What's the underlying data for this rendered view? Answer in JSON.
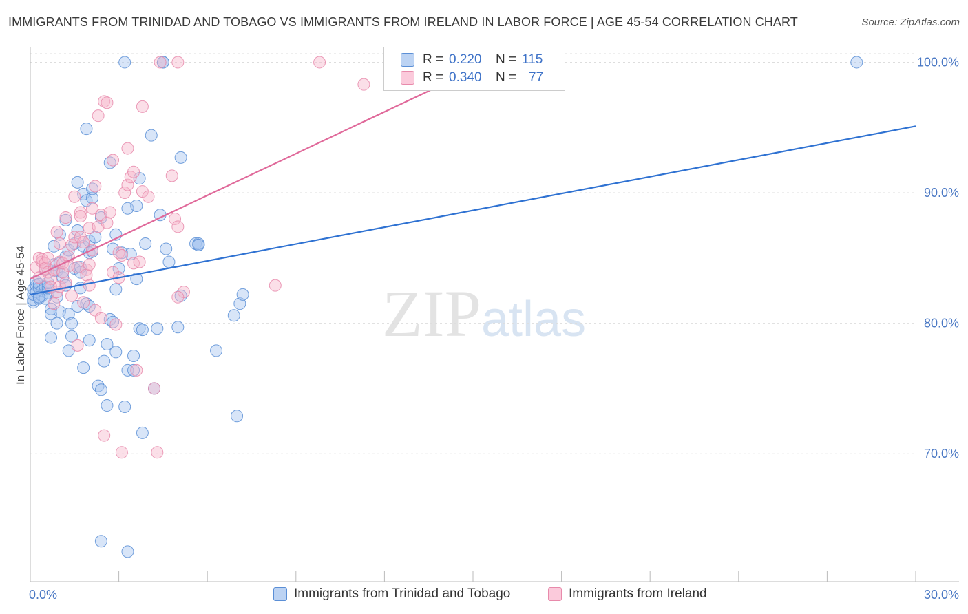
{
  "title": "IMMIGRANTS FROM TRINIDAD AND TOBAGO VS IMMIGRANTS FROM IRELAND IN LABOR FORCE | AGE 45-54 CORRELATION CHART",
  "source": "Source: ZipAtlas.com",
  "watermark": {
    "zip": "ZIP",
    "atlas": "atlas"
  },
  "legend": {
    "series1": {
      "r_label": "R =",
      "r_value": "0.220",
      "n_label": "N =",
      "n_value": "115"
    },
    "series2": {
      "r_label": "R =",
      "r_value": "0.340",
      "n_label": "N =",
      "n_value": "77"
    }
  },
  "colors": {
    "blue_fill": "#a9c6ef",
    "blue_stroke": "#5b8fd6",
    "blue_line": "#2f72d2",
    "pink_fill": "#f6b9cd",
    "pink_stroke": "#e88aab",
    "pink_line": "#e0699a",
    "grid": "#dddddd",
    "tick_text": "#4a78c4"
  },
  "chart_data": {
    "type": "scatter",
    "title": "IMMIGRANTS FROM TRINIDAD AND TOBAGO VS IMMIGRANTS FROM IRELAND IN LABOR FORCE | AGE 45-54 CORRELATION CHART",
    "xlabel": "",
    "ylabel": "In Labor Force | Age 45-54",
    "xlim": [
      0,
      30
    ],
    "ylim": [
      60.2,
      101.5
    ],
    "x_ticks": [
      0,
      3,
      6,
      9,
      12,
      15,
      18,
      21,
      24,
      27,
      30
    ],
    "x_tick_labels": {
      "0": "0.0%",
      "30": "30.0%"
    },
    "y_ticks": [
      70,
      80,
      90,
      100
    ],
    "y_tick_labels": [
      "70.0%",
      "80.0%",
      "90.0%",
      "100.0%"
    ],
    "grid": true,
    "legend_position": "top-center",
    "series": [
      {
        "name": "Immigrants from Trinidad and Tobago",
        "color": "#5b8fd6",
        "trend": {
          "x": [
            0,
            30
          ],
          "y": [
            82.2,
            95.1
          ]
        },
        "points": [
          [
            0.1,
            81.6
          ],
          [
            0.1,
            81.8
          ],
          [
            0.1,
            82.2
          ],
          [
            0.1,
            82.6
          ],
          [
            0.2,
            82.4
          ],
          [
            0.2,
            82.9
          ],
          [
            0.2,
            83.2
          ],
          [
            0.3,
            81.9
          ],
          [
            0.3,
            82.7
          ],
          [
            0.3,
            83.0
          ],
          [
            0.4,
            82.1
          ],
          [
            0.4,
            82.5
          ],
          [
            0.5,
            81.9
          ],
          [
            0.5,
            82.8
          ],
          [
            0.5,
            84.1
          ],
          [
            0.6,
            82.3
          ],
          [
            0.6,
            82.7
          ],
          [
            0.7,
            81.1
          ],
          [
            0.7,
            78.9
          ],
          [
            0.7,
            80.7
          ],
          [
            0.8,
            84.0
          ],
          [
            0.8,
            84.5
          ],
          [
            0.8,
            85.9
          ],
          [
            0.9,
            80.0
          ],
          [
            0.9,
            82.0
          ],
          [
            0.9,
            84.0
          ],
          [
            1.0,
            84.6
          ],
          [
            1.0,
            86.8
          ],
          [
            1.0,
            80.9
          ],
          [
            1.1,
            83.5
          ],
          [
            1.1,
            83.9
          ],
          [
            1.2,
            85.1
          ],
          [
            1.2,
            87.9
          ],
          [
            1.2,
            82.9
          ],
          [
            1.3,
            80.7
          ],
          [
            1.3,
            85.6
          ],
          [
            1.3,
            77.9
          ],
          [
            1.4,
            79.0
          ],
          [
            1.4,
            80.0
          ],
          [
            1.5,
            84.2
          ],
          [
            1.5,
            86.1
          ],
          [
            1.6,
            81.3
          ],
          [
            1.6,
            90.8
          ],
          [
            1.6,
            87.1
          ],
          [
            1.7,
            82.7
          ],
          [
            1.7,
            83.9
          ],
          [
            1.7,
            84.3
          ],
          [
            1.8,
            89.9
          ],
          [
            1.8,
            85.9
          ],
          [
            1.8,
            76.6
          ],
          [
            1.9,
            94.9
          ],
          [
            1.9,
            81.5
          ],
          [
            1.9,
            89.4
          ],
          [
            2.0,
            86.3
          ],
          [
            2.0,
            81.3
          ],
          [
            2.0,
            78.7
          ],
          [
            2.0,
            85.4
          ],
          [
            2.1,
            89.6
          ],
          [
            2.1,
            90.3
          ],
          [
            2.1,
            85.5
          ],
          [
            2.2,
            86.6
          ],
          [
            2.3,
            75.2
          ],
          [
            2.4,
            74.9
          ],
          [
            2.4,
            88.1
          ],
          [
            2.5,
            77.1
          ],
          [
            2.6,
            78.4
          ],
          [
            2.6,
            73.7
          ],
          [
            2.7,
            80.3
          ],
          [
            2.7,
            92.3
          ],
          [
            2.8,
            80.1
          ],
          [
            2.8,
            85.7
          ],
          [
            2.9,
            86.8
          ],
          [
            2.9,
            77.8
          ],
          [
            2.9,
            82.6
          ],
          [
            3.0,
            84.2
          ],
          [
            3.1,
            85.4
          ],
          [
            3.2,
            73.6
          ],
          [
            3.2,
            100.0
          ],
          [
            3.3,
            88.8
          ],
          [
            3.3,
            76.4
          ],
          [
            3.4,
            85.3
          ],
          [
            3.5,
            76.4
          ],
          [
            3.5,
            77.5
          ],
          [
            3.6,
            83.4
          ],
          [
            3.6,
            89.0
          ],
          [
            3.7,
            79.6
          ],
          [
            3.7,
            91.1
          ],
          [
            3.8,
            71.6
          ],
          [
            3.8,
            79.5
          ],
          [
            3.9,
            86.1
          ],
          [
            4.1,
            94.4
          ],
          [
            4.2,
            75.0
          ],
          [
            4.3,
            79.6
          ],
          [
            4.4,
            88.3
          ],
          [
            4.5,
            100.0
          ],
          [
            4.5,
            100.0
          ],
          [
            4.6,
            85.7
          ],
          [
            4.7,
            84.7
          ],
          [
            5.0,
            79.7
          ],
          [
            5.1,
            82.1
          ],
          [
            5.1,
            92.7
          ],
          [
            5.6,
            86.1
          ],
          [
            5.7,
            86.0
          ],
          [
            5.7,
            86.1
          ],
          [
            5.7,
            86.0
          ],
          [
            6.3,
            77.9
          ],
          [
            6.9,
            80.6
          ],
          [
            7.0,
            72.9
          ],
          [
            7.1,
            81.5
          ],
          [
            7.2,
            82.2
          ],
          [
            2.4,
            63.3
          ],
          [
            3.3,
            62.5
          ],
          [
            28.0,
            100.0
          ],
          [
            0.3,
            82.0
          ],
          [
            0.6,
            83.1
          ]
        ]
      },
      {
        "name": "Immigrants from Ireland",
        "color": "#e88aab",
        "trend": {
          "x": [
            0,
            15
          ],
          "y": [
            83.4,
            99.4
          ]
        },
        "points": [
          [
            0.2,
            84.3
          ],
          [
            0.3,
            83.5
          ],
          [
            0.3,
            85.0
          ],
          [
            0.4,
            84.7
          ],
          [
            0.4,
            84.9
          ],
          [
            0.5,
            84.6
          ],
          [
            0.5,
            84.2
          ],
          [
            0.6,
            85.0
          ],
          [
            0.6,
            83.9
          ],
          [
            0.7,
            83.4
          ],
          [
            0.7,
            82.8
          ],
          [
            0.8,
            84.1
          ],
          [
            0.8,
            81.5
          ],
          [
            0.9,
            87.0
          ],
          [
            0.9,
            82.4
          ],
          [
            1.0,
            86.1
          ],
          [
            1.0,
            84.7
          ],
          [
            1.0,
            82.8
          ],
          [
            1.1,
            83.9
          ],
          [
            1.1,
            84.6
          ],
          [
            1.2,
            83.1
          ],
          [
            1.2,
            88.1
          ],
          [
            1.3,
            85.1
          ],
          [
            1.3,
            84.4
          ],
          [
            1.4,
            86.0
          ],
          [
            1.4,
            82.1
          ],
          [
            1.5,
            89.7
          ],
          [
            1.5,
            86.6
          ],
          [
            1.6,
            78.3
          ],
          [
            1.6,
            84.3
          ],
          [
            1.7,
            88.5
          ],
          [
            1.7,
            88.2
          ],
          [
            1.7,
            86.6
          ],
          [
            1.8,
            86.2
          ],
          [
            1.8,
            81.6
          ],
          [
            1.9,
            84.1
          ],
          [
            1.9,
            83.7
          ],
          [
            2.0,
            87.3
          ],
          [
            2.0,
            82.9
          ],
          [
            2.1,
            85.6
          ],
          [
            2.1,
            88.8
          ],
          [
            2.2,
            90.5
          ],
          [
            2.2,
            81.0
          ],
          [
            2.3,
            95.9
          ],
          [
            2.3,
            87.4
          ],
          [
            2.4,
            80.4
          ],
          [
            2.4,
            88.3
          ],
          [
            2.5,
            97.0
          ],
          [
            2.5,
            71.4
          ],
          [
            2.6,
            96.9
          ],
          [
            2.6,
            87.7
          ],
          [
            2.7,
            88.5
          ],
          [
            2.8,
            92.5
          ],
          [
            2.8,
            83.9
          ],
          [
            2.9,
            79.9
          ],
          [
            3.0,
            83.5
          ],
          [
            3.0,
            85.4
          ],
          [
            3.1,
            85.2
          ],
          [
            3.1,
            70.1
          ],
          [
            3.2,
            90.0
          ],
          [
            3.3,
            93.4
          ],
          [
            3.3,
            90.6
          ],
          [
            3.4,
            91.2
          ],
          [
            3.5,
            91.6
          ],
          [
            3.5,
            84.6
          ],
          [
            3.6,
            76.4
          ],
          [
            3.7,
            84.7
          ],
          [
            3.8,
            96.6
          ],
          [
            3.8,
            90.1
          ],
          [
            4.0,
            89.7
          ],
          [
            4.2,
            75.0
          ],
          [
            4.3,
            70.1
          ],
          [
            4.4,
            100.0
          ],
          [
            4.8,
            91.3
          ],
          [
            4.9,
            88.0
          ],
          [
            5.0,
            100.0
          ],
          [
            5.2,
            82.4
          ]
        ]
      }
    ],
    "extra_pink_points": [
      [
        5.0,
        82.0
      ],
      [
        5.0,
        87.4
      ],
      [
        8.3,
        82.9
      ],
      [
        9.8,
        100.0
      ],
      [
        11.3,
        98.3
      ],
      [
        2.0,
        84.5
      ]
    ]
  },
  "bottom_legend": {
    "item1": "Immigrants from Trinidad and Tobago",
    "item2": "Immigrants from Ireland"
  }
}
